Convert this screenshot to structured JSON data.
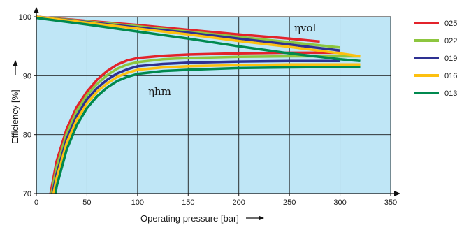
{
  "chart_data": {
    "type": "line",
    "xlabel": "Operating pressure [bar]",
    "ylabel": "Efficiency [%]",
    "xlim": [
      0,
      350
    ],
    "ylim": [
      70,
      100
    ],
    "x_ticks": [
      0,
      50,
      100,
      150,
      200,
      250,
      300,
      350
    ],
    "y_ticks": [
      70,
      80,
      90,
      100
    ],
    "grid": true,
    "plot_background": "#bfe6f6",
    "legend_position": "right",
    "annotations": [
      {
        "text": "ηvol",
        "x": 270,
        "y": 97.5
      },
      {
        "text": "ηhm",
        "x": 120,
        "y": 87.5
      }
    ],
    "series": [
      {
        "name": "025",
        "color": "#e3232b",
        "eta_vol": {
          "x": [
            0,
            50,
            100,
            150,
            200,
            250,
            280
          ],
          "y": [
            100,
            99.3,
            98.6,
            97.8,
            97.0,
            96.3,
            95.8
          ]
        },
        "eta_hm": {
          "x": [
            14,
            20,
            30,
            40,
            50,
            60,
            70,
            80,
            90,
            100,
            125,
            150,
            200,
            250,
            300
          ],
          "y": [
            70,
            75.5,
            81,
            84.7,
            87.3,
            89.3,
            90.8,
            91.9,
            92.6,
            93.0,
            93.4,
            93.6,
            93.8,
            93.9,
            93.9
          ]
        }
      },
      {
        "name": "022",
        "color": "#8dc63f",
        "eta_vol": {
          "x": [
            0,
            50,
            100,
            150,
            200,
            250,
            300
          ],
          "y": [
            100,
            99.2,
            98.4,
            97.5,
            96.6,
            95.7,
            94.8
          ]
        },
        "eta_hm": {
          "x": [
            15,
            20,
            30,
            40,
            50,
            60,
            70,
            80,
            90,
            100,
            125,
            150,
            200,
            250,
            300,
            320
          ],
          "y": [
            70,
            74.5,
            80.2,
            84.0,
            86.7,
            88.6,
            90.1,
            91.2,
            91.9,
            92.3,
            92.8,
            93.0,
            93.2,
            93.3,
            93.3,
            93.3
          ]
        }
      },
      {
        "name": "019",
        "color": "#2e3192",
        "eta_vol": {
          "x": [
            0,
            50,
            100,
            150,
            200,
            250,
            300
          ],
          "y": [
            100,
            99.1,
            98.2,
            97.3,
            96.3,
            95.3,
            94.3
          ]
        },
        "eta_hm": {
          "x": [
            16,
            20,
            30,
            40,
            50,
            60,
            70,
            80,
            90,
            100,
            125,
            150,
            200,
            250,
            300
          ],
          "y": [
            70,
            73.3,
            79.3,
            83.2,
            86.0,
            87.9,
            89.3,
            90.4,
            91.1,
            91.6,
            92.0,
            92.2,
            92.4,
            92.5,
            92.5
          ]
        }
      },
      {
        "name": "016",
        "color": "#fdc010",
        "eta_vol": {
          "x": [
            0,
            50,
            100,
            150,
            200,
            250,
            300,
            320
          ],
          "y": [
            100,
            99.0,
            98.0,
            97.0,
            95.9,
            94.9,
            93.8,
            93.3
          ]
        },
        "eta_hm": {
          "x": [
            17,
            20,
            30,
            40,
            50,
            60,
            70,
            80,
            90,
            100,
            125,
            150,
            200,
            250,
            300,
            320
          ],
          "y": [
            70,
            72.6,
            78.6,
            82.5,
            85.3,
            87.3,
            88.7,
            89.8,
            90.5,
            91.0,
            91.4,
            91.6,
            91.8,
            91.9,
            91.9,
            91.9
          ]
        }
      },
      {
        "name": "013",
        "color": "#00894f",
        "eta_vol": {
          "x": [
            0,
            50,
            100,
            150,
            200,
            250,
            300,
            320
          ],
          "y": [
            99.8,
            98.7,
            97.5,
            96.3,
            95.0,
            93.8,
            92.8,
            92.5
          ]
        },
        "eta_hm": {
          "x": [
            19,
            20,
            30,
            40,
            50,
            60,
            70,
            80,
            90,
            100,
            125,
            150,
            200,
            250,
            300,
            320
          ],
          "y": [
            70,
            71.2,
            77.5,
            81.6,
            84.5,
            86.5,
            88.0,
            89.1,
            89.8,
            90.3,
            90.8,
            91.0,
            91.3,
            91.4,
            91.5,
            91.5
          ]
        }
      }
    ]
  }
}
